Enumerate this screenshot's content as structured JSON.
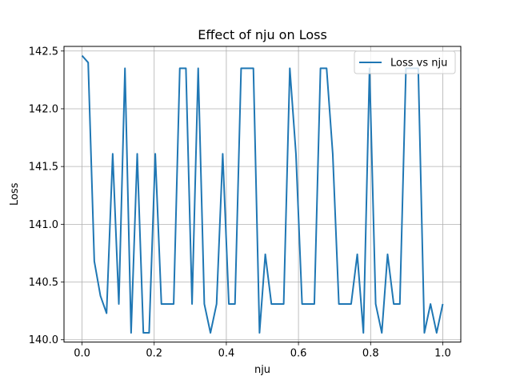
{
  "chart_data": {
    "type": "line",
    "title": "Effect of nju on Loss",
    "xlabel": "nju",
    "ylabel": "Loss",
    "xlim": [
      -0.05,
      1.05
    ],
    "ylim": [
      139.98,
      142.54
    ],
    "grid": true,
    "legend_position": "upper-right",
    "x_ticks": [
      "0.0",
      "0.2",
      "0.4",
      "0.6",
      "0.8",
      "1.0"
    ],
    "x_tick_values": [
      0.0,
      0.2,
      0.4,
      0.6,
      0.8,
      1.0
    ],
    "y_ticks": [
      "140.0",
      "140.5",
      "141.0",
      "141.5",
      "142.0",
      "142.5"
    ],
    "y_tick_values": [
      140.0,
      140.5,
      141.0,
      141.5,
      142.0,
      142.5
    ],
    "series": [
      {
        "name": "Loss vs nju",
        "color": "#1f77b4",
        "x": [
          0.0,
          0.017,
          0.034,
          0.051,
          0.068,
          0.085,
          0.102,
          0.119,
          0.136,
          0.153,
          0.17,
          0.186,
          0.203,
          0.22,
          0.237,
          0.254,
          0.271,
          0.288,
          0.305,
          0.322,
          0.339,
          0.356,
          0.373,
          0.39,
          0.407,
          0.424,
          0.441,
          0.458,
          0.475,
          0.492,
          0.508,
          0.525,
          0.542,
          0.559,
          0.576,
          0.593,
          0.61,
          0.627,
          0.644,
          0.661,
          0.678,
          0.695,
          0.712,
          0.729,
          0.746,
          0.763,
          0.78,
          0.797,
          0.814,
          0.831,
          0.847,
          0.864,
          0.881,
          0.898,
          0.915,
          0.932,
          0.949,
          0.966,
          0.983,
          1.0
        ],
        "y": [
          142.46,
          142.4,
          140.68,
          140.38,
          140.23,
          141.61,
          140.31,
          142.35,
          140.06,
          141.61,
          140.06,
          140.06,
          141.61,
          140.31,
          140.31,
          140.31,
          142.35,
          142.35,
          140.31,
          142.35,
          140.31,
          140.06,
          140.31,
          141.61,
          140.31,
          140.31,
          142.35,
          142.35,
          142.35,
          140.06,
          140.74,
          140.31,
          140.31,
          140.31,
          142.35,
          141.61,
          140.31,
          140.31,
          140.31,
          142.35,
          142.35,
          141.61,
          140.31,
          140.31,
          140.31,
          140.74,
          140.06,
          142.35,
          140.31,
          140.06,
          140.74,
          140.31,
          140.31,
          142.35,
          142.35,
          142.35,
          140.06,
          140.31,
          140.06,
          140.31
        ]
      }
    ]
  }
}
